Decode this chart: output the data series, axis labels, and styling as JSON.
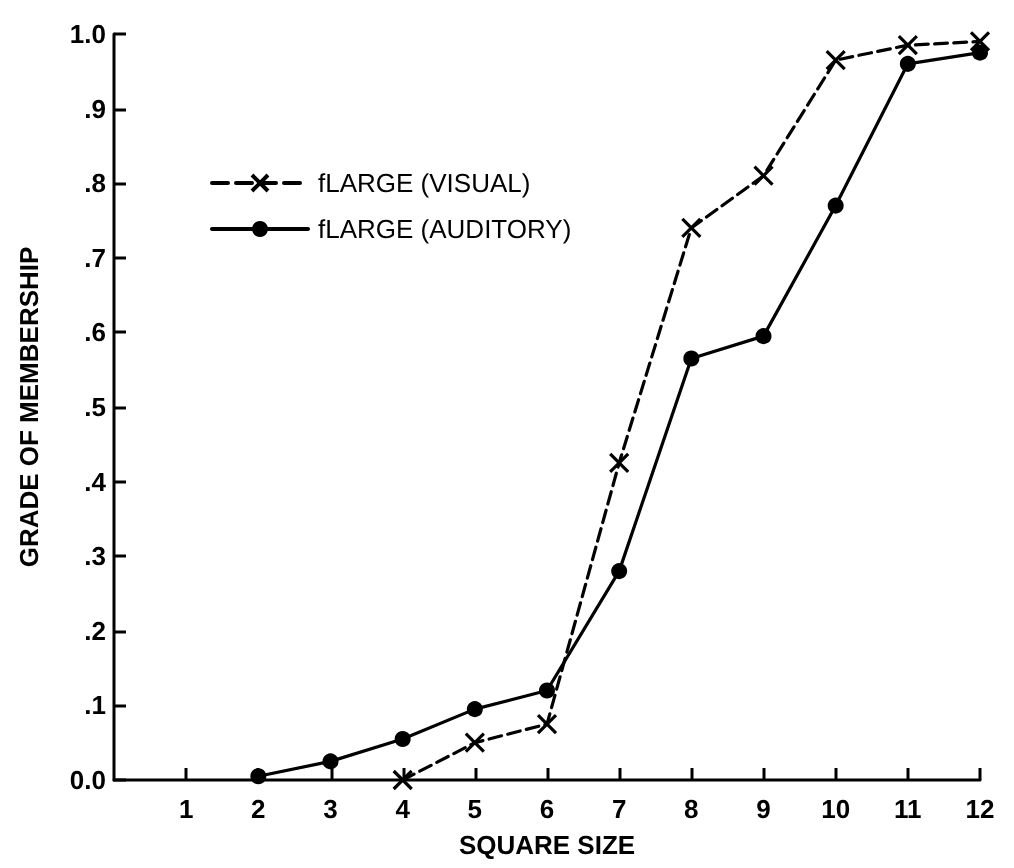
{
  "chart_data": {
    "type": "line",
    "xlabel": "SQUARE SIZE",
    "ylabel": "GRADE OF MEMBERSHIP",
    "xlim": [
      0,
      12
    ],
    "xticks": [
      1,
      2,
      3,
      4,
      5,
      6,
      7,
      8,
      9,
      10,
      11,
      12
    ],
    "ylim": [
      0,
      1
    ],
    "yticks": [
      {
        "value": 0,
        "label": "0.0"
      },
      {
        "value": 0.1,
        "label": ".1"
      },
      {
        "value": 0.2,
        "label": ".2"
      },
      {
        "value": 0.3,
        "label": ".3"
      },
      {
        "value": 0.4,
        "label": ".4"
      },
      {
        "value": 0.5,
        "label": ".5"
      },
      {
        "value": 0.6,
        "label": ".6"
      },
      {
        "value": 0.7,
        "label": ".7"
      },
      {
        "value": 0.8,
        "label": ".8"
      },
      {
        "value": 0.9,
        "label": ".9"
      },
      {
        "value": 1,
        "label": "1.0"
      }
    ],
    "grid": false,
    "legend": "top left",
    "series": [
      {
        "name": "fLARGE (VISUAL)",
        "color": "#000000",
        "marker": "cross",
        "line_style": "dashed",
        "x": [
          4,
          5,
          6,
          7,
          8,
          9,
          10,
          11,
          12
        ],
        "values": [
          0,
          0.05,
          0.075,
          0.425,
          0.74,
          0.81,
          0.965,
          0.985,
          0.99
        ]
      },
      {
        "name": "fLARGE (AUDITORY)",
        "color": "#000000",
        "marker": "circle",
        "line_style": "solid",
        "x": [
          2,
          3,
          4,
          5,
          6,
          7,
          8,
          9,
          10,
          11,
          12
        ],
        "values": [
          0.005,
          0.025,
          0.055,
          0.095,
          0.12,
          0.28,
          0.565,
          0.595,
          0.77,
          0.96,
          0.975
        ]
      }
    ]
  }
}
